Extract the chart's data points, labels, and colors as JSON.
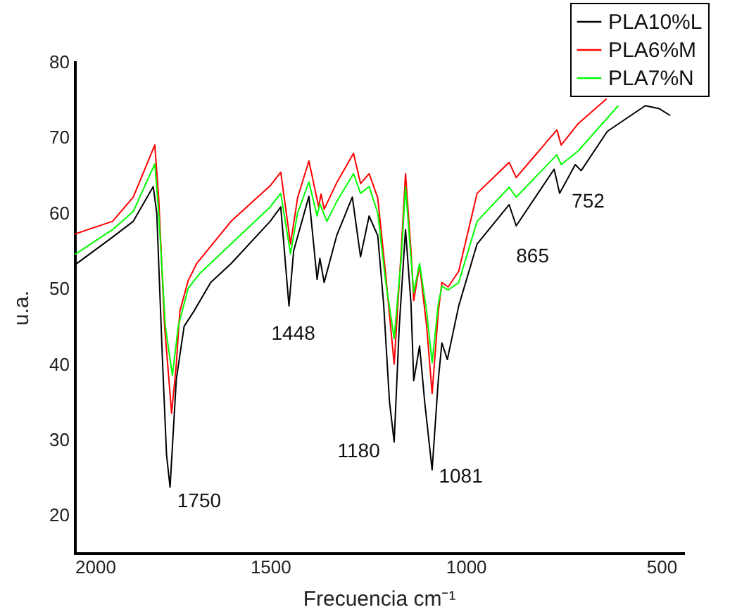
{
  "chart_data": {
    "type": "line",
    "xlabel": "Frecuencia cm⁻¹",
    "ylabel": "u.a.",
    "xlim": [
      2000,
      445
    ],
    "ylim": [
      15,
      80
    ],
    "xticks": [
      2000,
      1500,
      1000,
      500
    ],
    "yticks": [
      20,
      30,
      40,
      50,
      60,
      70,
      80
    ],
    "grid": false,
    "legend": "top right",
    "marker": "none",
    "line_style": "solid",
    "series": [
      {
        "name": "PLA10%L",
        "color": "#000000",
        "x": [
          2000,
          1903,
          1850,
          1799,
          1790,
          1775,
          1765,
          1756,
          1740,
          1720,
          1695,
          1652,
          1600,
          1500,
          1473,
          1452,
          1440,
          1401,
          1380,
          1373,
          1362,
          1330,
          1290,
          1269,
          1247,
          1225,
          1210,
          1195,
          1183,
          1170,
          1154,
          1140,
          1133,
          1118,
          1105,
          1086,
          1070,
          1061,
          1047,
          1018,
          971,
          889,
          871,
          774,
          760,
          720,
          705,
          638,
          541,
          505,
          477
        ],
        "values": [
          53.1,
          56.8,
          58.9,
          63.5,
          60,
          40,
          28,
          23.7,
          38,
          45,
          47,
          50.8,
          53.3,
          58.9,
          60.8,
          47.7,
          55,
          62.2,
          51.2,
          54,
          50.8,
          57,
          62.1,
          54.2,
          59.6,
          57,
          48,
          35,
          29.7,
          45,
          57.8,
          48,
          37.8,
          42.4,
          35,
          26,
          38,
          42.8,
          40.6,
          47.7,
          55.9,
          61.1,
          58.3,
          65.8,
          62.6,
          66.4,
          65.6,
          70.8,
          74.2,
          73.8,
          72.9
        ]
      },
      {
        "name": "PLA6%M",
        "color": "#ff0000",
        "x": [
          2000,
          1903,
          1850,
          1795,
          1785,
          1770,
          1752,
          1740,
          1731,
          1710,
          1688,
          1600,
          1500,
          1473,
          1448,
          1430,
          1401,
          1376,
          1370,
          1362,
          1330,
          1287,
          1269,
          1247,
          1225,
          1205,
          1183,
          1165,
          1154,
          1140,
          1133,
          1118,
          1100,
          1086,
          1070,
          1061,
          1045,
          1018,
          971,
          889,
          871,
          767,
          756,
          713,
          640
        ],
        "values": [
          57.2,
          58.9,
          62.1,
          69,
          62,
          45,
          33.5,
          40,
          47,
          51,
          53.3,
          58.9,
          63.6,
          65.4,
          55.9,
          62,
          66.9,
          60.8,
          62.5,
          60.5,
          64,
          67.9,
          63.9,
          65.2,
          62,
          52,
          40,
          55,
          65.2,
          55,
          48.4,
          53.1,
          45,
          36.1,
          47,
          50.8,
          50.2,
          52.3,
          62.6,
          66.7,
          64.7,
          71,
          69,
          71.8,
          75.1
        ]
      },
      {
        "name": "PLA7%N",
        "color": "#00ff00",
        "x": [
          2000,
          1903,
          1850,
          1795,
          1785,
          1768,
          1750,
          1735,
          1710,
          1680,
          1600,
          1500,
          1473,
          1448,
          1430,
          1401,
          1380,
          1373,
          1355,
          1330,
          1287,
          1269,
          1247,
          1225,
          1205,
          1183,
          1165,
          1154,
          1140,
          1133,
          1118,
          1100,
          1086,
          1070,
          1061,
          1045,
          1018,
          971,
          889,
          871,
          767,
          756,
          713,
          610
        ],
        "values": [
          54.5,
          57.8,
          60.2,
          66.5,
          60,
          45,
          38.5,
          45,
          50,
          52,
          55.9,
          60.8,
          62.6,
          54.6,
          60,
          64.1,
          59.6,
          61.2,
          58.9,
          61.5,
          65.2,
          62.6,
          63.5,
          60,
          51,
          43.4,
          54,
          63.5,
          54,
          49.5,
          53.3,
          47,
          40.2,
          48,
          50.3,
          49.8,
          50.8,
          58.9,
          63.4,
          62.1,
          67.7,
          66.4,
          68.2,
          74.2
        ]
      }
    ],
    "annotations": [
      {
        "text": "1750",
        "x": 1750,
        "y": 23.7
      },
      {
        "text": "1448",
        "x": 1448,
        "y": 47.7
      },
      {
        "text": "1180",
        "x": 1180,
        "y": 29.7
      },
      {
        "text": "1081",
        "x": 1081,
        "y": 26
      },
      {
        "text": "865",
        "x": 865,
        "y": 58.3
      },
      {
        "text": "752",
        "x": 752,
        "y": 62.6
      }
    ]
  }
}
